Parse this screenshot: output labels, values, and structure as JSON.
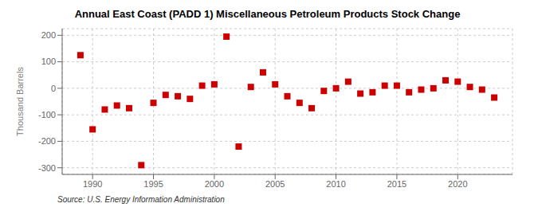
{
  "chart_data": {
    "type": "scatter",
    "title": "Annual East Coast (PADD 1) Miscellaneous Petroleum Products Stock Change",
    "ylabel": "Thousand Barrels",
    "source": "Source: U.S. Energy Information Administration",
    "x": [
      1989,
      1990,
      1991,
      1992,
      1993,
      1994,
      1995,
      1996,
      1997,
      1998,
      1999,
      2000,
      2001,
      2002,
      2003,
      2004,
      2005,
      2006,
      2007,
      2008,
      2009,
      2010,
      2011,
      2012,
      2013,
      2014,
      2015,
      2016,
      2017,
      2018,
      2019,
      2020,
      2021,
      2022,
      2023
    ],
    "values": [
      125,
      -155,
      -80,
      -65,
      -75,
      -290,
      -55,
      -25,
      -30,
      -40,
      10,
      15,
      195,
      -220,
      5,
      60,
      15,
      -30,
      -55,
      -75,
      -10,
      0,
      25,
      -20,
      -15,
      10,
      10,
      -15,
      -5,
      0,
      30,
      25,
      5,
      -5,
      -35
    ],
    "color": "#cc0000",
    "marker": "square",
    "xlim": [
      1987.5,
      2024.5
    ],
    "xticks": [
      1990,
      1995,
      2000,
      2005,
      2010,
      2015,
      2020
    ],
    "ylim": [
      -325,
      225
    ],
    "yticks": [
      -300,
      -200,
      -100,
      0,
      100,
      200
    ],
    "grid": true
  }
}
